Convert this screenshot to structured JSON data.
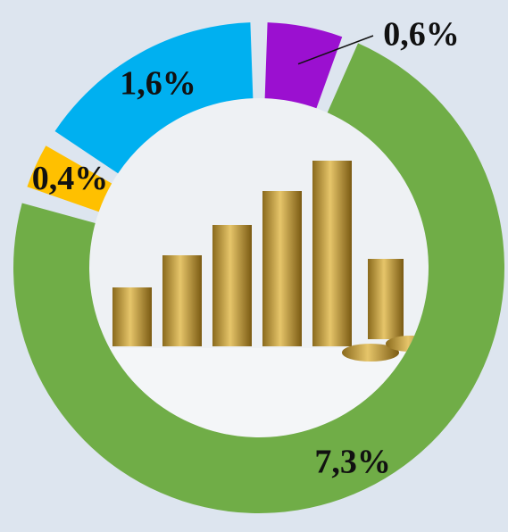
{
  "chart_data": {
    "type": "donut",
    "values": [
      0.6,
      7.3,
      0.4,
      1.6
    ],
    "value_labels": [
      "0,6%",
      "7,3%",
      "0,4%",
      "1,6%"
    ],
    "colors": [
      "#9b10d0",
      "#70ad47",
      "#ffc000",
      "#00b0f0"
    ]
  }
}
